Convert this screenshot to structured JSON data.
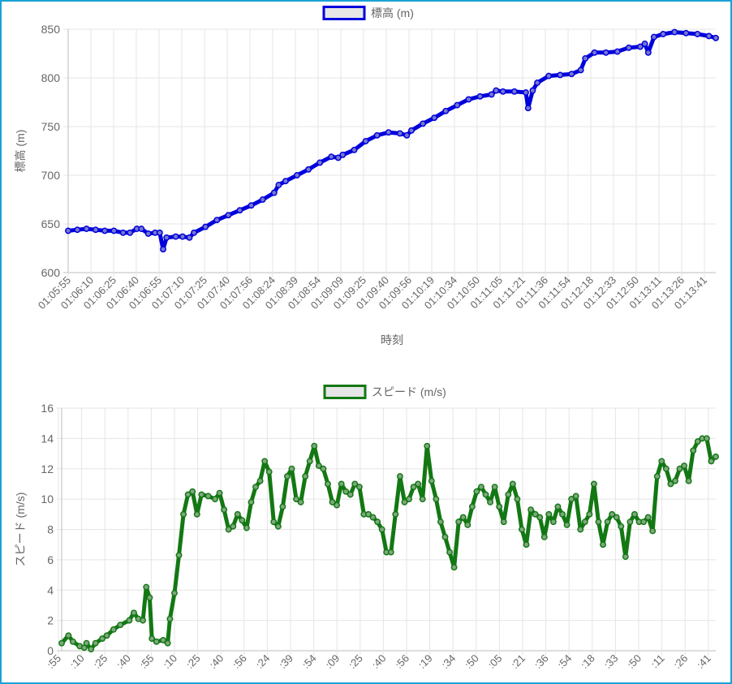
{
  "chart_data": [
    {
      "type": "line",
      "legend_position": "top",
      "series": [
        {
          "name": "標高 (m)",
          "color": "#0000dd",
          "legend_fill": "#e6e6e6"
        }
      ],
      "xlabel": "時刻",
      "ylabel": "標高 (m)",
      "ylim": [
        600,
        850
      ],
      "yticks": [
        600,
        650,
        700,
        750,
        800,
        850
      ],
      "grid": true,
      "x_ticks": [
        "01:05:55",
        "01:06:10",
        "01:06:25",
        "01:06:40",
        "01:06:55",
        "01:07:10",
        "01:07:25",
        "01:07:40",
        "01:07:56",
        "01:08:24",
        "01:08:39",
        "01:08:54",
        "01:09:09",
        "01:09:25",
        "01:09:40",
        "01:09:56",
        "01:10:19",
        "01:10:34",
        "01:10:50",
        "01:11:05",
        "01:11:21",
        "01:11:36",
        "01:11:54",
        "01:12:18",
        "01:12:33",
        "01:12:50",
        "01:13:11",
        "01:13:26",
        "01:13:41"
      ],
      "points": [
        [
          0,
          643
        ],
        [
          0.4,
          644
        ],
        [
          0.8,
          645
        ],
        [
          1.2,
          644
        ],
        [
          1.6,
          643
        ],
        [
          2.0,
          643
        ],
        [
          2.4,
          641
        ],
        [
          2.7,
          641
        ],
        [
          3.0,
          645
        ],
        [
          3.2,
          645
        ],
        [
          3.5,
          640
        ],
        [
          3.8,
          641
        ],
        [
          4.0,
          641
        ],
        [
          4.15,
          624
        ],
        [
          4.3,
          636
        ],
        [
          4.7,
          637
        ],
        [
          5.0,
          637
        ],
        [
          5.3,
          636
        ],
        [
          5.5,
          641
        ],
        [
          6.0,
          647
        ],
        [
          6.5,
          654
        ],
        [
          7.0,
          659
        ],
        [
          7.5,
          664
        ],
        [
          8.0,
          669
        ],
        [
          8.5,
          675
        ],
        [
          9.0,
          682
        ],
        [
          9.2,
          690
        ],
        [
          9.5,
          694
        ],
        [
          10.0,
          700
        ],
        [
          10.5,
          706
        ],
        [
          11.0,
          713
        ],
        [
          11.5,
          719
        ],
        [
          11.8,
          718
        ],
        [
          12.0,
          721
        ],
        [
          12.5,
          726
        ],
        [
          13.0,
          735
        ],
        [
          13.5,
          741
        ],
        [
          14.0,
          744
        ],
        [
          14.5,
          743
        ],
        [
          14.8,
          741
        ],
        [
          15.0,
          746
        ],
        [
          15.5,
          753
        ],
        [
          16.0,
          759
        ],
        [
          16.5,
          766
        ],
        [
          17.0,
          772
        ],
        [
          17.5,
          778
        ],
        [
          18.0,
          781
        ],
        [
          18.5,
          783
        ],
        [
          18.7,
          787
        ],
        [
          19.0,
          786
        ],
        [
          19.5,
          786
        ],
        [
          20.0,
          785
        ],
        [
          20.1,
          769
        ],
        [
          20.3,
          787
        ],
        [
          20.5,
          795
        ],
        [
          21.0,
          802
        ],
        [
          21.5,
          803
        ],
        [
          22.0,
          804
        ],
        [
          22.4,
          808
        ],
        [
          22.6,
          820
        ],
        [
          23.0,
          826
        ],
        [
          23.5,
          826
        ],
        [
          24.0,
          827
        ],
        [
          24.5,
          831
        ],
        [
          25.0,
          832
        ],
        [
          25.2,
          835
        ],
        [
          25.35,
          826
        ],
        [
          25.6,
          842
        ],
        [
          26.0,
          845
        ],
        [
          26.5,
          847
        ],
        [
          27.0,
          846
        ],
        [
          27.5,
          845
        ],
        [
          28.0,
          843
        ],
        [
          28.3,
          841
        ]
      ]
    },
    {
      "type": "line",
      "legend_position": "top",
      "series": [
        {
          "name": "スピード (m/s)",
          "color": "#137813",
          "legend_fill": "#e6e6e6"
        }
      ],
      "ylabel": "スピード (m/s)",
      "ylim": [
        0,
        16
      ],
      "yticks": [
        0,
        2,
        4,
        6,
        8,
        10,
        12,
        14,
        16
      ],
      "grid": true,
      "x_ticks": [
        ":55",
        ":10",
        ":25",
        ":40",
        ":55",
        ":10",
        ":25",
        ":40",
        ":56",
        ":24",
        ":39",
        ":54",
        ":09",
        ":25",
        ":40",
        ":56",
        ":19",
        ":34",
        ":50",
        ":05",
        ":21",
        ":36",
        ":54",
        ":18",
        ":33",
        ":50",
        ":11",
        ":26",
        ":41"
      ],
      "points": [
        [
          0,
          0.5
        ],
        [
          0.3,
          1.0
        ],
        [
          0.5,
          0.6
        ],
        [
          0.8,
          0.3
        ],
        [
          1.0,
          0.2
        ],
        [
          1.1,
          0.5
        ],
        [
          1.3,
          0.1
        ],
        [
          1.5,
          0.5
        ],
        [
          1.8,
          0.8
        ],
        [
          2.0,
          1.0
        ],
        [
          2.3,
          1.4
        ],
        [
          2.6,
          1.7
        ],
        [
          3.0,
          2.0
        ],
        [
          3.2,
          2.5
        ],
        [
          3.4,
          2.1
        ],
        [
          3.6,
          2.0
        ],
        [
          3.75,
          4.2
        ],
        [
          3.9,
          3.5
        ],
        [
          4.0,
          0.8
        ],
        [
          4.2,
          0.6
        ],
        [
          4.5,
          0.7
        ],
        [
          4.7,
          0.5
        ],
        [
          4.8,
          2.1
        ],
        [
          5.0,
          3.8
        ],
        [
          5.2,
          6.3
        ],
        [
          5.4,
          9.0
        ],
        [
          5.6,
          10.3
        ],
        [
          5.8,
          10.5
        ],
        [
          6.0,
          9.0
        ],
        [
          6.2,
          10.3
        ],
        [
          6.5,
          10.2
        ],
        [
          6.8,
          10.0
        ],
        [
          7.0,
          10.4
        ],
        [
          7.2,
          9.3
        ],
        [
          7.4,
          8.0
        ],
        [
          7.6,
          8.2
        ],
        [
          7.8,
          9.0
        ],
        [
          8.0,
          8.6
        ],
        [
          8.2,
          8.1
        ],
        [
          8.4,
          9.8
        ],
        [
          8.6,
          10.8
        ],
        [
          8.8,
          11.2
        ],
        [
          9.0,
          12.5
        ],
        [
          9.2,
          11.8
        ],
        [
          9.4,
          8.5
        ],
        [
          9.6,
          8.2
        ],
        [
          9.8,
          9.5
        ],
        [
          10.0,
          11.5
        ],
        [
          10.2,
          12.0
        ],
        [
          10.4,
          10.0
        ],
        [
          10.6,
          9.8
        ],
        [
          10.8,
          11.5
        ],
        [
          11.0,
          12.5
        ],
        [
          11.2,
          13.5
        ],
        [
          11.4,
          12.2
        ],
        [
          11.6,
          12.0
        ],
        [
          11.8,
          11.0
        ],
        [
          12.0,
          9.8
        ],
        [
          12.2,
          9.6
        ],
        [
          12.4,
          11.0
        ],
        [
          12.6,
          10.5
        ],
        [
          12.8,
          10.3
        ],
        [
          13.0,
          11.0
        ],
        [
          13.2,
          10.8
        ],
        [
          13.4,
          9.0
        ],
        [
          13.6,
          9.0
        ],
        [
          13.8,
          8.8
        ],
        [
          14.0,
          8.5
        ],
        [
          14.2,
          8.0
        ],
        [
          14.4,
          6.5
        ],
        [
          14.6,
          6.5
        ],
        [
          14.8,
          9.0
        ],
        [
          15.0,
          11.5
        ],
        [
          15.2,
          9.8
        ],
        [
          15.4,
          10.0
        ],
        [
          15.6,
          10.8
        ],
        [
          15.8,
          11.0
        ],
        [
          16.0,
          10.0
        ],
        [
          16.2,
          13.5
        ],
        [
          16.4,
          11.2
        ],
        [
          16.6,
          10.0
        ],
        [
          16.8,
          8.5
        ],
        [
          17.0,
          7.5
        ],
        [
          17.2,
          6.5
        ],
        [
          17.4,
          5.5
        ],
        [
          17.6,
          8.5
        ],
        [
          17.8,
          8.8
        ],
        [
          18.0,
          8.3
        ],
        [
          18.2,
          9.5
        ],
        [
          18.4,
          10.5
        ],
        [
          18.6,
          10.8
        ],
        [
          18.8,
          10.3
        ],
        [
          19.0,
          9.8
        ],
        [
          19.2,
          10.8
        ],
        [
          19.4,
          9.5
        ],
        [
          19.6,
          8.5
        ],
        [
          19.8,
          10.3
        ],
        [
          20.0,
          11.0
        ],
        [
          20.2,
          10.0
        ],
        [
          20.4,
          8.0
        ],
        [
          20.6,
          7.0
        ],
        [
          20.8,
          9.3
        ],
        [
          21.0,
          9.0
        ],
        [
          21.2,
          8.8
        ],
        [
          21.4,
          7.5
        ],
        [
          21.6,
          9.0
        ],
        [
          21.8,
          8.5
        ],
        [
          22.0,
          9.5
        ],
        [
          22.2,
          9.0
        ],
        [
          22.4,
          8.3
        ],
        [
          22.6,
          10.0
        ],
        [
          22.8,
          10.2
        ],
        [
          23.0,
          8.0
        ],
        [
          23.2,
          8.5
        ],
        [
          23.4,
          9.0
        ],
        [
          23.6,
          11.0
        ],
        [
          23.8,
          8.5
        ],
        [
          24.0,
          7.0
        ],
        [
          24.2,
          8.5
        ],
        [
          24.4,
          9.0
        ],
        [
          24.6,
          8.8
        ],
        [
          24.8,
          8.2
        ],
        [
          25.0,
          6.2
        ],
        [
          25.2,
          8.5
        ],
        [
          25.4,
          9.0
        ],
        [
          25.6,
          8.5
        ],
        [
          25.8,
          8.5
        ],
        [
          26.0,
          8.8
        ],
        [
          26.2,
          7.9
        ],
        [
          26.4,
          11.5
        ],
        [
          26.6,
          12.5
        ],
        [
          26.8,
          12.0
        ],
        [
          27.0,
          11.0
        ],
        [
          27.2,
          11.2
        ],
        [
          27.4,
          12.0
        ],
        [
          27.6,
          12.2
        ],
        [
          27.8,
          11.2
        ],
        [
          28.0,
          13.2
        ],
        [
          28.2,
          13.8
        ],
        [
          28.4,
          14.0
        ],
        [
          28.6,
          14.0
        ],
        [
          28.8,
          12.5
        ],
        [
          29.0,
          12.8
        ]
      ]
    }
  ]
}
